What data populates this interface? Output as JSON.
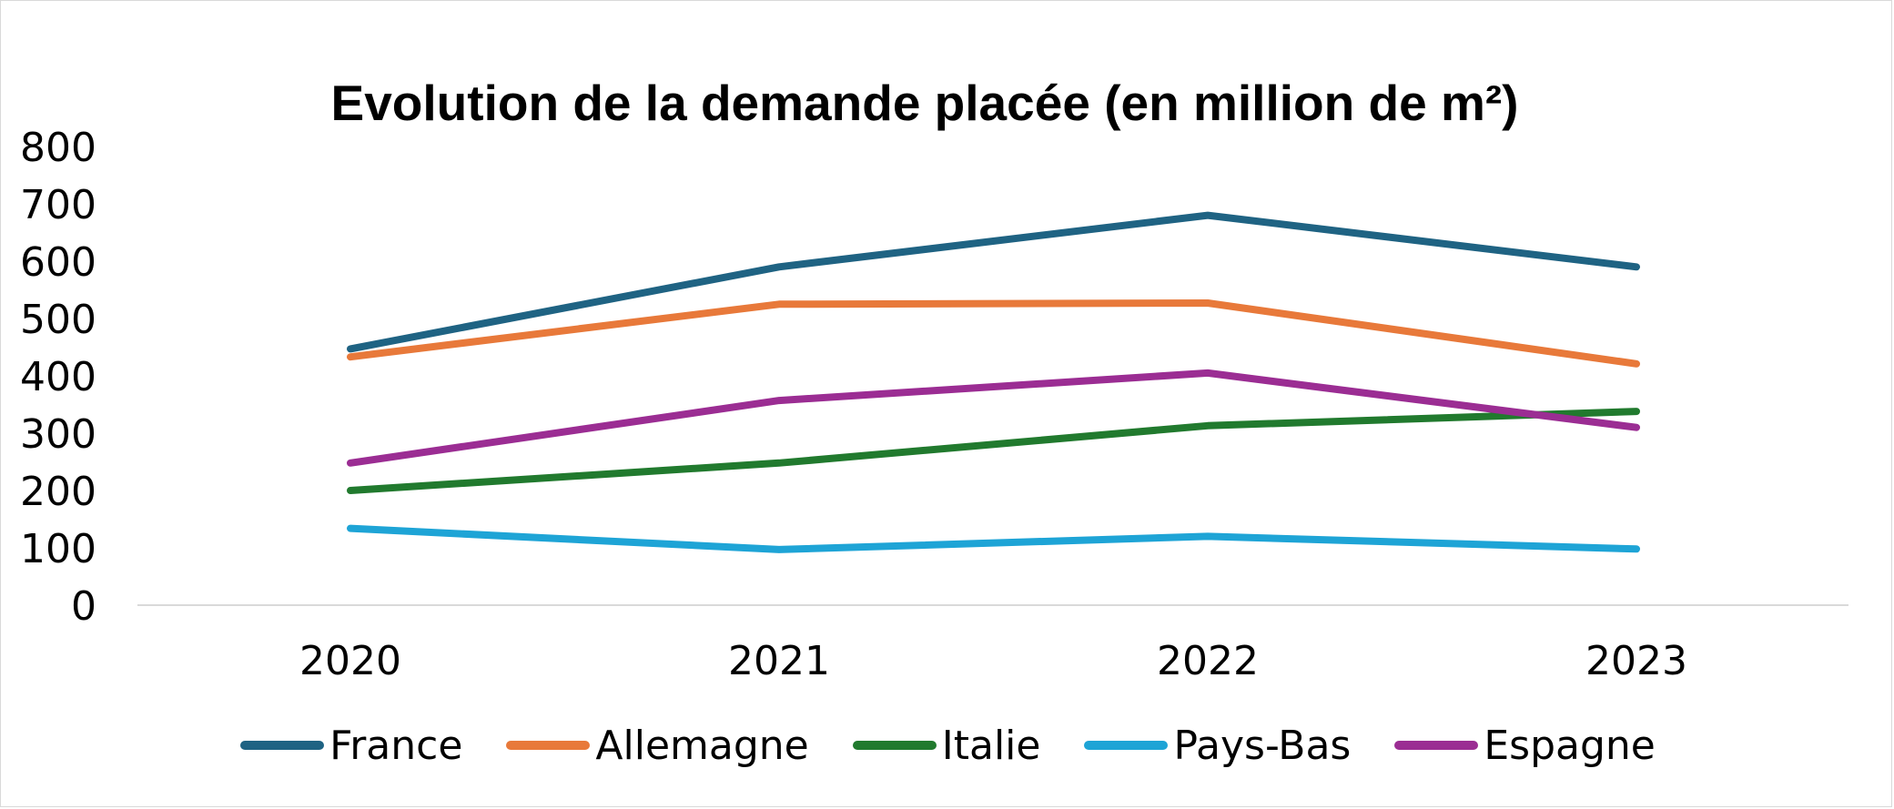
{
  "chart_data": {
    "type": "line",
    "title": "Evolution de la demande placée (en million de m²)",
    "xlabel": "",
    "ylabel": "",
    "categories": [
      "2020",
      "2021",
      "2022",
      "2023"
    ],
    "ylim": [
      0,
      800
    ],
    "yticks": [
      "0",
      "100",
      "200",
      "300",
      "400",
      "500",
      "600",
      "700",
      "800"
    ],
    "grid": false,
    "legend_position": "bottom",
    "series": [
      {
        "name": "France",
        "color": "#1f6383",
        "values": [
          447,
          590,
          680,
          590
        ]
      },
      {
        "name": "Allemagne",
        "color": "#e8793a",
        "values": [
          433,
          525,
          527,
          421
        ]
      },
      {
        "name": "Italie",
        "color": "#217a2e",
        "values": [
          200,
          248,
          313,
          338
        ]
      },
      {
        "name": "Pays-Bas",
        "color": "#1ea4d6",
        "values": [
          134,
          97,
          120,
          98
        ]
      },
      {
        "name": "Espagne",
        "color": "#9b2d93",
        "values": [
          248,
          357,
          405,
          310
        ]
      }
    ]
  }
}
